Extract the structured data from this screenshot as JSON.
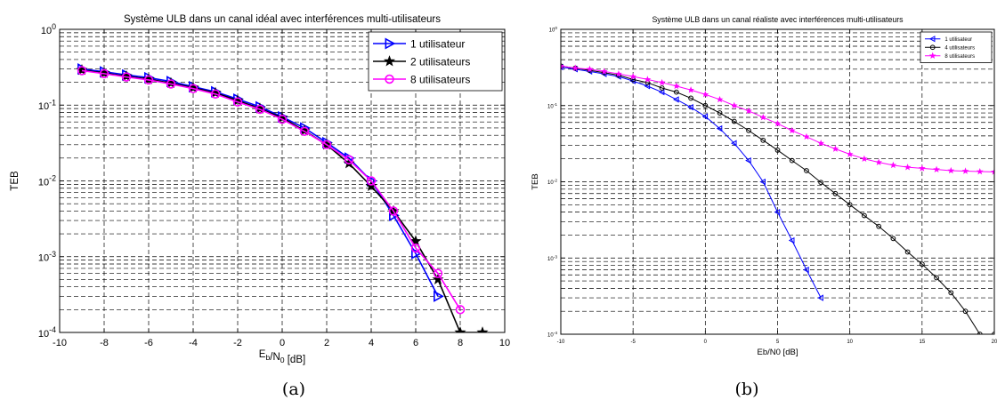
{
  "chart_data": [
    {
      "type": "line",
      "panel_label": "(a)",
      "title": "Système ULB dans un canal idéal avec interférences multi-utilisateurs",
      "xlabel": "E_b/N_0 [dB]",
      "ylabel": "TEB",
      "xlim": [
        -10,
        10
      ],
      "ylim": [
        0.0001,
        1
      ],
      "yscale": "log",
      "grid": true,
      "legend_position": "top-right",
      "x_ticks": [
        -10,
        -8,
        -6,
        -4,
        -2,
        0,
        2,
        4,
        6,
        8,
        10
      ],
      "y_ticks": [
        0.0001,
        0.001,
        0.01,
        0.1,
        1
      ],
      "series": [
        {
          "name": "1 utilisateur",
          "color": "#0000ff",
          "marker": "triangle-right",
          "x": [
            -9,
            -8,
            -7,
            -6,
            -5,
            -4,
            -3,
            -2,
            -1,
            0,
            1,
            2,
            3,
            4,
            5,
            6,
            7
          ],
          "y": [
            0.3,
            0.275,
            0.25,
            0.23,
            0.205,
            0.175,
            0.15,
            0.12,
            0.095,
            0.07,
            0.05,
            0.032,
            0.02,
            0.01,
            0.0035,
            0.0011,
            0.0003
          ]
        },
        {
          "name": "2 utilisateurs",
          "color": "#000000",
          "marker": "star",
          "x": [
            -9,
            -8,
            -7,
            -6,
            -5,
            -4,
            -3,
            -2,
            -1,
            0,
            1,
            2,
            3,
            4,
            5,
            6,
            7,
            8,
            9
          ],
          "y": [
            0.29,
            0.265,
            0.24,
            0.22,
            0.195,
            0.17,
            0.145,
            0.115,
            0.09,
            0.068,
            0.046,
            0.03,
            0.017,
            0.0085,
            0.004,
            0.0016,
            0.0005,
            0.0001,
            0.0001
          ]
        },
        {
          "name": "8 utilisateurs",
          "color": "#ff00ff",
          "marker": "circle",
          "x": [
            -9,
            -8,
            -7,
            -6,
            -5,
            -4,
            -3,
            -2,
            -1,
            0,
            1,
            2,
            3,
            4,
            5,
            6,
            7,
            8
          ],
          "y": [
            0.285,
            0.26,
            0.235,
            0.215,
            0.19,
            0.165,
            0.14,
            0.11,
            0.088,
            0.065,
            0.045,
            0.03,
            0.019,
            0.01,
            0.004,
            0.0013,
            0.0006,
            0.0002
          ]
        }
      ]
    },
    {
      "type": "line",
      "panel_label": "(b)",
      "title": "Système ULB dans un canal réaliste avec interférences multi-utilisateurs",
      "xlabel": "Eb/N0 [dB]",
      "ylabel": "TEB",
      "xlim": [
        -10,
        20
      ],
      "ylim": [
        0.0001,
        1
      ],
      "yscale": "log",
      "grid": true,
      "legend_position": "top-right",
      "x_ticks": [
        -10,
        -5,
        0,
        5,
        10,
        15,
        20
      ],
      "y_ticks": [
        0.0001,
        0.001,
        0.01,
        0.1,
        1
      ],
      "series": [
        {
          "name": "1 utilisateur",
          "color": "#0000ff",
          "marker": "triangle-left",
          "x": [
            -10,
            -9,
            -8,
            -7,
            -6,
            -5,
            -4,
            -3,
            -2,
            -1,
            0,
            1,
            2,
            3,
            4,
            5,
            6,
            7,
            8
          ],
          "y": [
            0.32,
            0.3,
            0.28,
            0.26,
            0.24,
            0.21,
            0.18,
            0.15,
            0.12,
            0.095,
            0.072,
            0.05,
            0.032,
            0.019,
            0.01,
            0.004,
            0.0017,
            0.0007,
            0.0003
          ]
        },
        {
          "name": "4 utilisateurs",
          "color": "#000000",
          "marker": "circle",
          "x": [
            -10,
            -9,
            -8,
            -7,
            -6,
            -5,
            -4,
            -3,
            -2,
            -1,
            0,
            1,
            2,
            3,
            4,
            5,
            6,
            7,
            8,
            9,
            10,
            11,
            12,
            13,
            14,
            15,
            16,
            17,
            18,
            19,
            20
          ],
          "y": [
            0.33,
            0.31,
            0.29,
            0.27,
            0.25,
            0.22,
            0.2,
            0.17,
            0.15,
            0.125,
            0.1,
            0.08,
            0.062,
            0.047,
            0.035,
            0.026,
            0.019,
            0.014,
            0.0098,
            0.007,
            0.005,
            0.0036,
            0.0026,
            0.0018,
            0.0012,
            0.00083,
            0.00055,
            0.00035,
            0.0002,
            0.0001,
            0.0001
          ]
        },
        {
          "name": "8 utilisateurs",
          "color": "#ff00ff",
          "marker": "star",
          "x": [
            -10,
            -9,
            -8,
            -7,
            -6,
            -5,
            -4,
            -3,
            -2,
            -1,
            0,
            1,
            2,
            3,
            4,
            5,
            6,
            7,
            8,
            9,
            10,
            11,
            12,
            13,
            14,
            15,
            16,
            17,
            18,
            19,
            20
          ],
          "y": [
            0.33,
            0.31,
            0.3,
            0.28,
            0.26,
            0.24,
            0.22,
            0.2,
            0.18,
            0.16,
            0.14,
            0.12,
            0.1,
            0.085,
            0.07,
            0.058,
            0.047,
            0.039,
            0.032,
            0.027,
            0.023,
            0.02,
            0.018,
            0.0165,
            0.0155,
            0.015,
            0.0145,
            0.014,
            0.0138,
            0.0136,
            0.0135
          ]
        }
      ]
    }
  ]
}
